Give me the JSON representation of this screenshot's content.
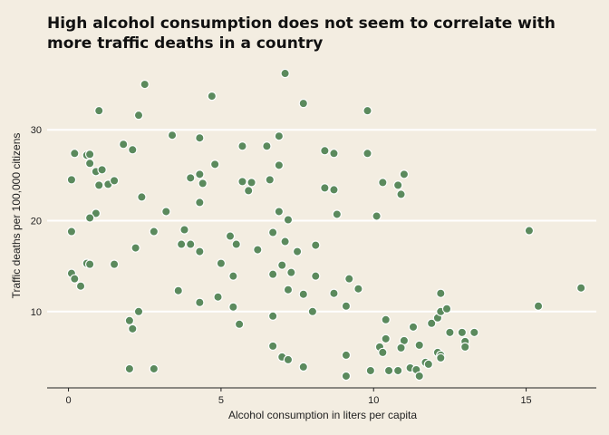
{
  "chart_data": {
    "type": "scatter",
    "title_lines": [
      "High alcohol consumption does not seem to correlate with",
      "more traffic deaths in a country"
    ],
    "xlabel": "Alcohol consumption in liters per capita",
    "ylabel": "Traffic deaths per 100,000 citizens",
    "xlim": [
      -0.7,
      17.3
    ],
    "ylim": [
      1.6,
      37.5
    ],
    "x_ticks": [
      0,
      5,
      10,
      15
    ],
    "y_ticks": [
      10,
      20,
      30
    ],
    "grid": "horizontal",
    "point_color": "#5b8a5d",
    "points": [
      [
        0.1,
        24.5
      ],
      [
        0.2,
        27.4
      ],
      [
        0.6,
        27.2
      ],
      [
        0.7,
        27.3
      ],
      [
        0.7,
        26.3
      ],
      [
        0.9,
        25.4
      ],
      [
        1.0,
        23.9
      ],
      [
        1.1,
        25.6
      ],
      [
        1.3,
        24.0
      ],
      [
        1.5,
        24.4
      ],
      [
        1.0,
        32.1
      ],
      [
        1.8,
        28.4
      ],
      [
        2.1,
        27.8
      ],
      [
        2.3,
        31.6
      ],
      [
        2.5,
        35.0
      ],
      [
        2.4,
        22.6
      ],
      [
        2.2,
        17.0
      ],
      [
        0.1,
        18.8
      ],
      [
        0.9,
        20.8
      ],
      [
        0.7,
        20.3
      ],
      [
        0.1,
        14.2
      ],
      [
        0.2,
        13.6
      ],
      [
        0.4,
        12.8
      ],
      [
        0.6,
        15.3
      ],
      [
        0.7,
        15.2
      ],
      [
        1.5,
        15.2
      ],
      [
        2.0,
        9.0
      ],
      [
        2.1,
        8.1
      ],
      [
        2.3,
        10.0
      ],
      [
        2.0,
        3.7
      ],
      [
        2.8,
        3.7
      ],
      [
        2.8,
        18.8
      ],
      [
        3.2,
        21.0
      ],
      [
        3.4,
        29.4
      ],
      [
        3.7,
        17.4
      ],
      [
        3.8,
        19.0
      ],
      [
        4.0,
        17.4
      ],
      [
        4.3,
        16.6
      ],
      [
        3.6,
        12.3
      ],
      [
        4.3,
        11.0
      ],
      [
        4.0,
        24.7
      ],
      [
        4.3,
        25.1
      ],
      [
        4.4,
        24.1
      ],
      [
        4.3,
        22.0
      ],
      [
        4.3,
        29.1
      ],
      [
        4.7,
        33.7
      ],
      [
        4.8,
        26.2
      ],
      [
        4.9,
        11.6
      ],
      [
        5.0,
        15.3
      ],
      [
        5.3,
        18.3
      ],
      [
        5.4,
        13.9
      ],
      [
        5.4,
        10.5
      ],
      [
        5.6,
        8.6
      ],
      [
        5.5,
        17.4
      ],
      [
        5.7,
        28.2
      ],
      [
        5.7,
        24.3
      ],
      [
        5.9,
        23.3
      ],
      [
        6.0,
        24.2
      ],
      [
        6.2,
        16.8
      ],
      [
        6.5,
        28.2
      ],
      [
        6.6,
        24.5
      ],
      [
        6.7,
        18.7
      ],
      [
        6.7,
        14.1
      ],
      [
        6.7,
        9.5
      ],
      [
        6.7,
        6.2
      ],
      [
        6.9,
        29.3
      ],
      [
        6.9,
        26.1
      ],
      [
        6.9,
        21.0
      ],
      [
        7.0,
        5.0
      ],
      [
        7.1,
        36.2
      ],
      [
        7.1,
        17.7
      ],
      [
        7.2,
        20.1
      ],
      [
        7.3,
        14.3
      ],
      [
        7.2,
        12.4
      ],
      [
        7.0,
        15.1
      ],
      [
        7.2,
        4.7
      ],
      [
        7.5,
        16.6
      ],
      [
        7.7,
        11.9
      ],
      [
        7.7,
        3.9
      ],
      [
        7.7,
        32.9
      ],
      [
        8.1,
        17.3
      ],
      [
        8.1,
        13.9
      ],
      [
        8.0,
        10.0
      ],
      [
        8.4,
        27.7
      ],
      [
        8.4,
        23.6
      ],
      [
        8.7,
        27.4
      ],
      [
        8.7,
        23.4
      ],
      [
        8.7,
        12.0
      ],
      [
        8.8,
        20.7
      ],
      [
        9.1,
        10.6
      ],
      [
        9.2,
        13.6
      ],
      [
        9.1,
        5.2
      ],
      [
        9.1,
        2.9
      ],
      [
        9.5,
        12.5
      ],
      [
        9.8,
        32.1
      ],
      [
        9.8,
        27.4
      ],
      [
        10.1,
        20.5
      ],
      [
        9.9,
        3.5
      ],
      [
        10.3,
        24.2
      ],
      [
        10.2,
        6.1
      ],
      [
        10.3,
        5.5
      ],
      [
        10.4,
        9.1
      ],
      [
        10.4,
        7.0
      ],
      [
        10.8,
        23.9
      ],
      [
        10.9,
        22.9
      ],
      [
        11.0,
        25.1
      ],
      [
        11.0,
        6.8
      ],
      [
        10.9,
        6.0
      ],
      [
        10.5,
        3.5
      ],
      [
        10.8,
        3.5
      ],
      [
        11.2,
        3.8
      ],
      [
        11.3,
        8.3
      ],
      [
        11.5,
        6.3
      ],
      [
        11.4,
        3.6
      ],
      [
        11.5,
        2.9
      ],
      [
        11.7,
        4.4
      ],
      [
        11.8,
        4.2
      ],
      [
        11.9,
        8.7
      ],
      [
        12.1,
        9.3
      ],
      [
        12.2,
        12.0
      ],
      [
        12.2,
        10.0
      ],
      [
        12.4,
        10.3
      ],
      [
        12.1,
        5.5
      ],
      [
        12.2,
        5.2
      ],
      [
        12.2,
        4.9
      ],
      [
        12.5,
        7.7
      ],
      [
        12.9,
        7.7
      ],
      [
        13.0,
        6.7
      ],
      [
        13.0,
        6.1
      ],
      [
        13.3,
        7.7
      ],
      [
        15.1,
        18.9
      ],
      [
        15.4,
        10.6
      ],
      [
        16.8,
        12.6
      ]
    ]
  }
}
